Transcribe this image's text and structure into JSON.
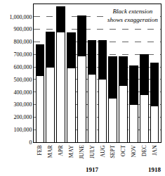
{
  "chart_data": {
    "type": "bar",
    "stacked": true,
    "grid": true,
    "categories": [
      "FEB",
      "MAR",
      "APR",
      "MAY",
      "JUNE",
      "JULY",
      "AUG",
      "SEPT",
      "OCT",
      "NOV",
      "DEC",
      "JAN"
    ],
    "series": [
      {
        "color": "#ffffff",
        "values": [
          530000,
          600000,
          880000,
          590000,
          690000,
          540000,
          500000,
          350000,
          450000,
          300000,
          380000,
          290000
        ]
      },
      {
        "color": "#000000",
        "values": [
          250000,
          280000,
          200000,
          280000,
          320000,
          270000,
          310000,
          330000,
          230000,
          310000,
          320000,
          340000
        ]
      }
    ],
    "ylim": [
      0,
      1100000
    ],
    "yticks": [
      0,
      {
        "value": 100000,
        "label": "100,000"
      },
      {
        "value": 200000,
        "label": "200,000"
      },
      {
        "value": 300000,
        "label": "300,000"
      },
      {
        "value": 400000,
        "label": "400,000"
      },
      {
        "value": 500000,
        "label": "500,000"
      },
      {
        "value": 600000,
        "label": "600,000"
      },
      {
        "value": 700000,
        "label": "700,000"
      },
      {
        "value": 800000,
        "label": "800,000"
      },
      {
        "value": 900000,
        "label": "900,000"
      },
      {
        "value": 1000000,
        "label": "1,000,000"
      }
    ],
    "annotations": [
      {
        "text": "Black extension shows exaggeration"
      }
    ],
    "year_labels": [
      {
        "label": "1917",
        "from": "FEB",
        "to": "DEC"
      },
      {
        "label": "1918",
        "from": "JAN",
        "to": "JAN"
      }
    ]
  }
}
